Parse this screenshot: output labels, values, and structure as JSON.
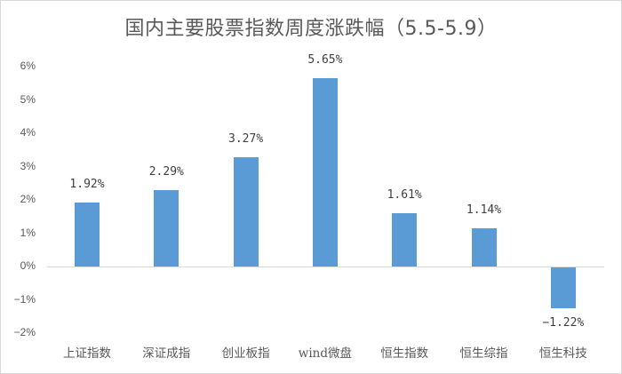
{
  "chart_data": {
    "type": "bar",
    "title": "国内主要股票指数周度涨跌幅（5.5-5.9）",
    "xlabel": "",
    "ylabel": "",
    "categories": [
      "上证指数",
      "深证成指",
      "创业板指",
      "wind微盘",
      "恒生指数",
      "恒生综指",
      "恒生科技"
    ],
    "values": [
      1.92,
      2.29,
      3.27,
      5.65,
      1.61,
      1.14,
      -1.22
    ],
    "data_labels": [
      "1.92%",
      "2.29%",
      "3.27%",
      "5.65%",
      "1.61%",
      "1.14%",
      "−1.22%"
    ],
    "ylim": [
      -2,
      6
    ],
    "yticks": [
      "6%",
      "5%",
      "4%",
      "3%",
      "2%",
      "1%",
      "0%",
      "−1%",
      "−2%"
    ],
    "grid": false,
    "legend": null,
    "bar_color": "#5b9bd5"
  }
}
